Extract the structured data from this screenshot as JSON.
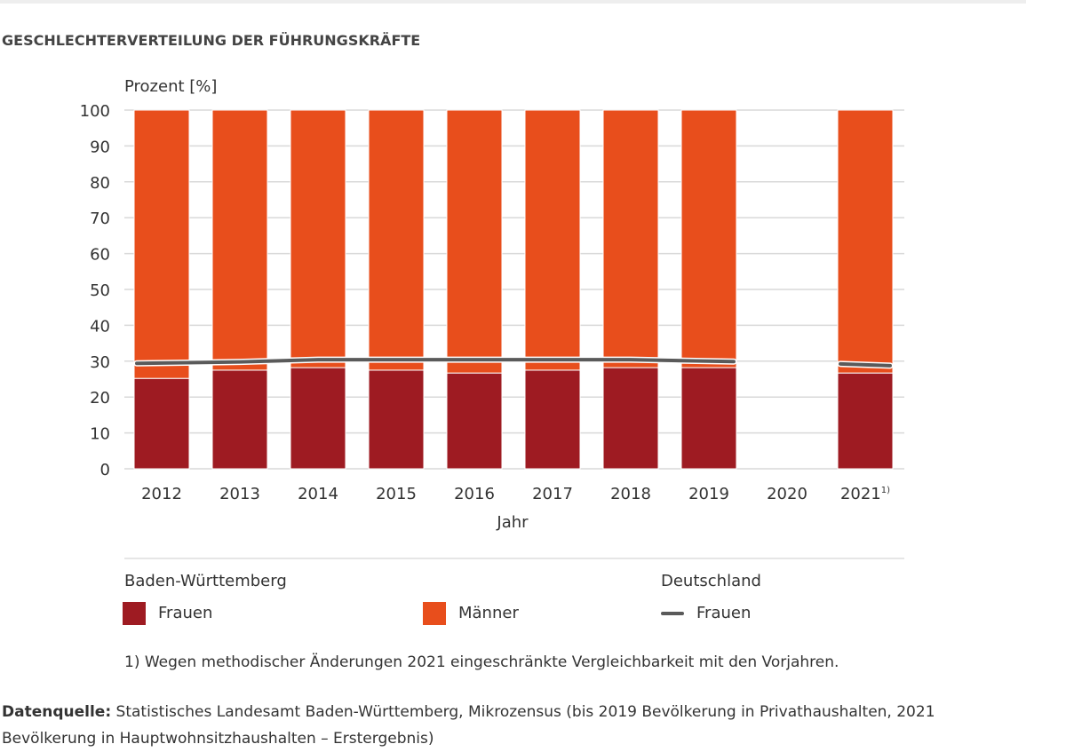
{
  "title": "GESCHLECHTERVERTEILUNG DER FÜHRUNGSKRÄFTE",
  "chart_data": {
    "type": "bar",
    "stacked": true,
    "ylabel": "Prozent [%]",
    "xlabel": "Jahr",
    "ylim": [
      0,
      100
    ],
    "yticks": [
      0,
      10,
      20,
      30,
      40,
      50,
      60,
      70,
      80,
      90,
      100
    ],
    "grid": true,
    "categories": [
      "2012",
      "2013",
      "2014",
      "2015",
      "2016",
      "2017",
      "2018",
      "2019",
      "2020",
      "2021"
    ],
    "category_footnote": {
      "2021": "1)"
    },
    "series": [
      {
        "name": "Frauen",
        "group": "Baden-Württemberg",
        "type": "bar",
        "color": "#9e1b22",
        "values": [
          25.2,
          27.5,
          28.2,
          27.5,
          26.7,
          27.5,
          28.2,
          28.2,
          null,
          26.7
        ]
      },
      {
        "name": "Männer",
        "group": "Baden-Württemberg",
        "type": "bar",
        "color": "#e84e1c",
        "values": [
          74.8,
          72.5,
          71.8,
          72.5,
          73.3,
          72.5,
          71.8,
          71.8,
          null,
          73.3
        ]
      },
      {
        "name": "Frauen",
        "group": "Deutschland",
        "type": "line",
        "color": "#5a5a5a",
        "values": [
          29.4,
          29.8,
          30.4,
          30.4,
          30.4,
          30.4,
          30.4,
          29.9,
          null,
          29.0
        ]
      }
    ],
    "legend": {
      "placement": "bottom",
      "group1": "Baden-Württemberg",
      "group2": "Deutschland",
      "frauen": "Frauen",
      "maenner": "Männer"
    }
  },
  "footnote": "1) Wegen methodischer Änderungen 2021 eingeschränkte Vergleichbarkeit mit den Vorjahren.",
  "source": {
    "label": "Datenquelle:",
    "text": " Statistisches Landesamt Baden-Württemberg, Mikrozensus (bis 2019 Bevölkerung in Privathaushalten, 2021 Bevölkerung in Hauptwohnsitzhaushalten – Erstergebnis)"
  }
}
